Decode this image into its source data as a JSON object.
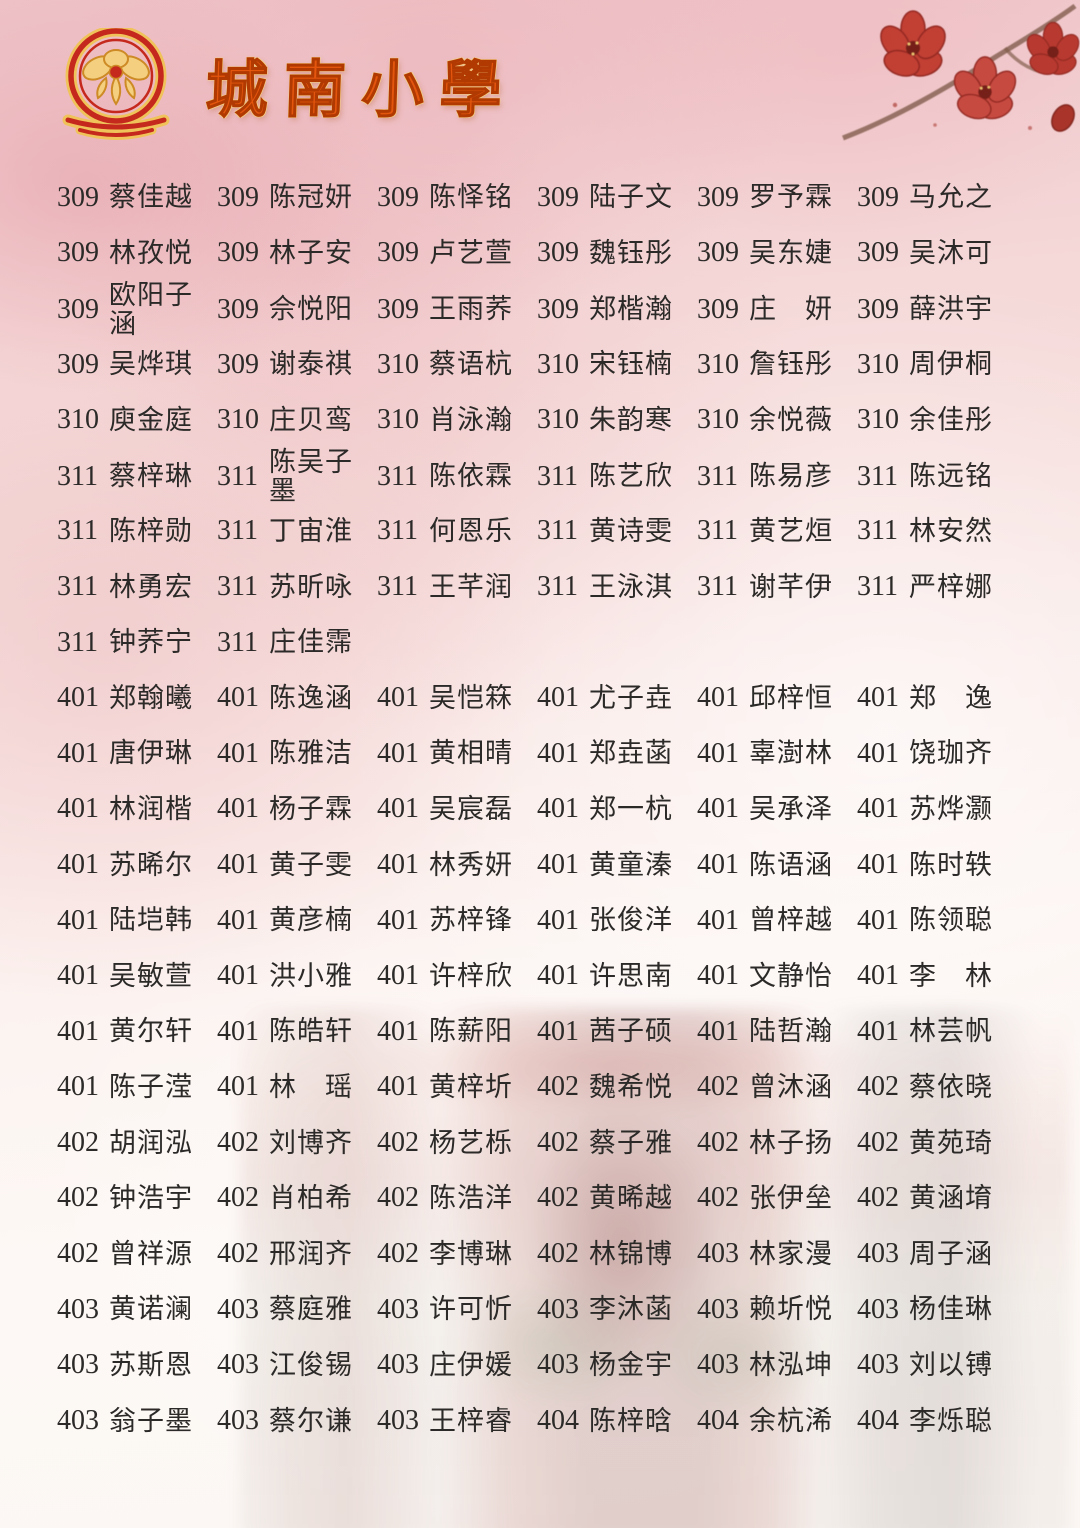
{
  "header": {
    "school_name": "城南小學",
    "accent_color": "#e4560e",
    "logo_icon": "school-emblem-flower"
  },
  "decor": {
    "flower_icon": "red-kapok-flowers",
    "background": "pink-watercolor",
    "bottom_image": "faint-school-gate-photo"
  },
  "roster": {
    "rows": [
      [
        {
          "c": "309",
          "n": "蔡佳越"
        },
        {
          "c": "309",
          "n": "陈冠妍"
        },
        {
          "c": "309",
          "n": "陈怿铭"
        },
        {
          "c": "309",
          "n": "陆子文"
        },
        {
          "c": "309",
          "n": "罗予霖"
        },
        {
          "c": "309",
          "n": "马允之"
        }
      ],
      [
        {
          "c": "309",
          "n": "林孜悦"
        },
        {
          "c": "309",
          "n": "林子安"
        },
        {
          "c": "309",
          "n": "卢艺萱"
        },
        {
          "c": "309",
          "n": "魏钰彤"
        },
        {
          "c": "309",
          "n": "吴东婕"
        },
        {
          "c": "309",
          "n": "吴沐可"
        }
      ],
      [
        {
          "c": "309",
          "n": "欧阳子涵"
        },
        {
          "c": "309",
          "n": "佘悦阳"
        },
        {
          "c": "309",
          "n": "王雨荞"
        },
        {
          "c": "309",
          "n": "郑楷瀚"
        },
        {
          "c": "309",
          "n": "庄　妍"
        },
        {
          "c": "309",
          "n": "薛洪宇"
        }
      ],
      [
        {
          "c": "309",
          "n": "吴烨琪"
        },
        {
          "c": "309",
          "n": "谢泰祺"
        },
        {
          "c": "310",
          "n": "蔡语杭"
        },
        {
          "c": "310",
          "n": "宋钰楠"
        },
        {
          "c": "310",
          "n": "詹钰彤"
        },
        {
          "c": "310",
          "n": "周伊桐"
        }
      ],
      [
        {
          "c": "310",
          "n": "庾金庭"
        },
        {
          "c": "310",
          "n": "庄贝鸾"
        },
        {
          "c": "310",
          "n": "肖泳瀚"
        },
        {
          "c": "310",
          "n": "朱韵寒"
        },
        {
          "c": "310",
          "n": "余悦薇"
        },
        {
          "c": "310",
          "n": "余佳彤"
        }
      ],
      [
        {
          "c": "311",
          "n": "蔡梓琳"
        },
        {
          "c": "311",
          "n": "陈吴子墨"
        },
        {
          "c": "311",
          "n": "陈依霖"
        },
        {
          "c": "311",
          "n": "陈艺欣"
        },
        {
          "c": "311",
          "n": "陈易彦"
        },
        {
          "c": "311",
          "n": "陈远铭"
        }
      ],
      [
        {
          "c": "311",
          "n": "陈梓勋"
        },
        {
          "c": "311",
          "n": "丁宙淮"
        },
        {
          "c": "311",
          "n": "何恩乐"
        },
        {
          "c": "311",
          "n": "黄诗雯"
        },
        {
          "c": "311",
          "n": "黄艺烜"
        },
        {
          "c": "311",
          "n": "林安然"
        }
      ],
      [
        {
          "c": "311",
          "n": "林勇宏"
        },
        {
          "c": "311",
          "n": "苏昕咏"
        },
        {
          "c": "311",
          "n": "王芊润"
        },
        {
          "c": "311",
          "n": "王泳淇"
        },
        {
          "c": "311",
          "n": "谢芊伊"
        },
        {
          "c": "311",
          "n": "严梓娜"
        }
      ],
      [
        {
          "c": "311",
          "n": "钟荞宁"
        },
        {
          "c": "311",
          "n": "庄佳霈"
        }
      ],
      [
        {
          "c": "401",
          "n": "郑翰曦"
        },
        {
          "c": "401",
          "n": "陈逸涵"
        },
        {
          "c": "401",
          "n": "吴恺箖"
        },
        {
          "c": "401",
          "n": "尤子垚"
        },
        {
          "c": "401",
          "n": "邱梓恒"
        },
        {
          "c": "401",
          "n": "郑　逸"
        }
      ],
      [
        {
          "c": "401",
          "n": "唐伊琳"
        },
        {
          "c": "401",
          "n": "陈雅洁"
        },
        {
          "c": "401",
          "n": "黄相晴"
        },
        {
          "c": "401",
          "n": "郑垚菡"
        },
        {
          "c": "401",
          "n": "辜澍林"
        },
        {
          "c": "401",
          "n": "饶珈齐"
        }
      ],
      [
        {
          "c": "401",
          "n": "林润楷"
        },
        {
          "c": "401",
          "n": "杨子霖"
        },
        {
          "c": "401",
          "n": "吴宸磊"
        },
        {
          "c": "401",
          "n": "郑一杭"
        },
        {
          "c": "401",
          "n": "吴承泽"
        },
        {
          "c": "401",
          "n": "苏烨灏"
        }
      ],
      [
        {
          "c": "401",
          "n": "苏晞尔"
        },
        {
          "c": "401",
          "n": "黄子雯"
        },
        {
          "c": "401",
          "n": "林秀妍"
        },
        {
          "c": "401",
          "n": "黄童溱"
        },
        {
          "c": "401",
          "n": "陈语涵"
        },
        {
          "c": "401",
          "n": "陈时轶"
        }
      ],
      [
        {
          "c": "401",
          "n": "陆垲韩"
        },
        {
          "c": "401",
          "n": "黄彦楠"
        },
        {
          "c": "401",
          "n": "苏梓锋"
        },
        {
          "c": "401",
          "n": "张俊洋"
        },
        {
          "c": "401",
          "n": "曾梓越"
        },
        {
          "c": "401",
          "n": "陈领聪"
        }
      ],
      [
        {
          "c": "401",
          "n": "吴敏萱"
        },
        {
          "c": "401",
          "n": "洪小雅"
        },
        {
          "c": "401",
          "n": "许梓欣"
        },
        {
          "c": "401",
          "n": "许思南"
        },
        {
          "c": "401",
          "n": "文静怡"
        },
        {
          "c": "401",
          "n": "李　林"
        }
      ],
      [
        {
          "c": "401",
          "n": "黄尔轩"
        },
        {
          "c": "401",
          "n": "陈皓轩"
        },
        {
          "c": "401",
          "n": "陈薪阳"
        },
        {
          "c": "401",
          "n": "茜子硕"
        },
        {
          "c": "401",
          "n": "陆哲瀚"
        },
        {
          "c": "401",
          "n": "林芸帆"
        }
      ],
      [
        {
          "c": "401",
          "n": "陈子滢"
        },
        {
          "c": "401",
          "n": "林　瑶"
        },
        {
          "c": "401",
          "n": "黄梓圻"
        },
        {
          "c": "402",
          "n": "魏希悦"
        },
        {
          "c": "402",
          "n": "曾沐涵"
        },
        {
          "c": "402",
          "n": "蔡依晓"
        }
      ],
      [
        {
          "c": "402",
          "n": "胡润泓"
        },
        {
          "c": "402",
          "n": "刘博齐"
        },
        {
          "c": "402",
          "n": "杨艺栎"
        },
        {
          "c": "402",
          "n": "蔡子雅"
        },
        {
          "c": "402",
          "n": "林子扬"
        },
        {
          "c": "402",
          "n": "黄苑琦"
        }
      ],
      [
        {
          "c": "402",
          "n": "钟浩宇"
        },
        {
          "c": "402",
          "n": "肖柏希"
        },
        {
          "c": "402",
          "n": "陈浩洋"
        },
        {
          "c": "402",
          "n": "黄晞越"
        },
        {
          "c": "402",
          "n": "张伊垒"
        },
        {
          "c": "402",
          "n": "黄涵堉"
        }
      ],
      [
        {
          "c": "402",
          "n": "曾祥源"
        },
        {
          "c": "402",
          "n": "邢润齐"
        },
        {
          "c": "402",
          "n": "李博琳"
        },
        {
          "c": "402",
          "n": "林锦博"
        },
        {
          "c": "403",
          "n": "林家漫"
        },
        {
          "c": "403",
          "n": "周子涵"
        }
      ],
      [
        {
          "c": "403",
          "n": "黄诺澜"
        },
        {
          "c": "403",
          "n": "蔡庭雅"
        },
        {
          "c": "403",
          "n": "许可忻"
        },
        {
          "c": "403",
          "n": "李沐菡"
        },
        {
          "c": "403",
          "n": "赖圻悦"
        },
        {
          "c": "403",
          "n": "杨佳琳"
        }
      ],
      [
        {
          "c": "403",
          "n": "苏斯恩"
        },
        {
          "c": "403",
          "n": "江俊锡"
        },
        {
          "c": "403",
          "n": "庄伊媛"
        },
        {
          "c": "403",
          "n": "杨金宇"
        },
        {
          "c": "403",
          "n": "林泓坤"
        },
        {
          "c": "403",
          "n": "刘以镈"
        }
      ],
      [
        {
          "c": "403",
          "n": "翁子墨"
        },
        {
          "c": "403",
          "n": "蔡尔谦"
        },
        {
          "c": "403",
          "n": "王梓睿"
        },
        {
          "c": "404",
          "n": "陈梓晗"
        },
        {
          "c": "404",
          "n": "余杭浠"
        },
        {
          "c": "404",
          "n": "李烁聪"
        }
      ]
    ]
  }
}
